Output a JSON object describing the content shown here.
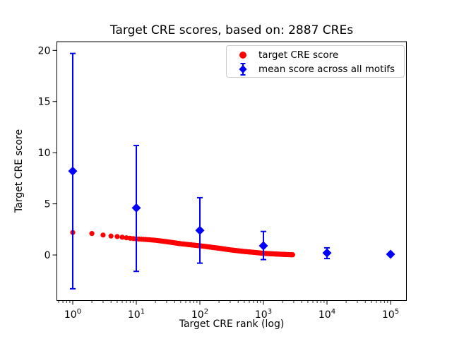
{
  "figure": {
    "background": "#ffffff"
  },
  "chart_data": {
    "type": "scatter",
    "title": "Target CRE scores, based on: 2887 CREs",
    "xlabel": "Target CRE rank (log)",
    "ylabel": "Target CRE score",
    "x_scale": "log",
    "xlim_log10": [
      -0.25,
      5.25
    ],
    "ylim": [
      -4.45,
      20.85
    ],
    "x_tick_exponents": [
      0,
      1,
      2,
      3,
      4,
      5
    ],
    "x_tick_base": "10",
    "y_ticks": [
      0,
      5,
      10,
      15,
      20
    ],
    "grid": false,
    "colors": {
      "red": "#ff0000",
      "blue": "#0000ff",
      "axis": "#000000",
      "legend_border": "#cccccc"
    },
    "legend": {
      "position": "upper center-right",
      "entries": [
        {
          "label": "target CRE score",
          "marker": "circle",
          "color": "#ff0000"
        },
        {
          "label": "mean score across all motifs",
          "marker": "diamond-errorbar",
          "color": "#0000ff"
        }
      ]
    },
    "series": [
      {
        "name": "target CRE score",
        "type": "scatter-curve",
        "color": "#ff0000",
        "marker": "circle",
        "n_points": 2887,
        "anchor_ranks": [
          1,
          2,
          3,
          4,
          5,
          7,
          10,
          15,
          20,
          30,
          50,
          70,
          100,
          150,
          200,
          300,
          500,
          700,
          1000,
          1500,
          2000,
          2887
        ],
        "anchor_scores": [
          2.2,
          2.1,
          1.95,
          1.85,
          1.8,
          1.68,
          1.57,
          1.5,
          1.44,
          1.3,
          1.1,
          1.0,
          0.9,
          0.76,
          0.66,
          0.5,
          0.34,
          0.26,
          0.16,
          0.1,
          0.06,
          0.02
        ]
      },
      {
        "name": "mean score across all motifs",
        "type": "errorbar-diamond",
        "color": "#0000ff",
        "marker": "diamond",
        "x": [
          1,
          10,
          100,
          1000,
          10000,
          100000
        ],
        "mean": [
          8.2,
          4.6,
          2.4,
          0.9,
          0.2,
          0.07
        ],
        "err_low": [
          -3.3,
          -1.6,
          -0.8,
          -0.45,
          -0.35,
          0.07
        ],
        "err_high": [
          19.7,
          10.7,
          5.6,
          2.3,
          0.7,
          0.07
        ]
      }
    ]
  }
}
